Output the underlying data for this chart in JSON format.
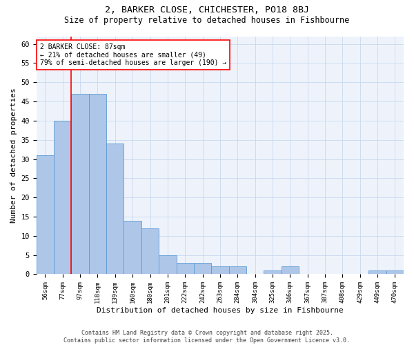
{
  "title1": "2, BARKER CLOSE, CHICHESTER, PO18 8BJ",
  "title2": "Size of property relative to detached houses in Fishbourne",
  "xlabel": "Distribution of detached houses by size in Fishbourne",
  "ylabel": "Number of detached properties",
  "bar_labels": [
    "56sqm",
    "77sqm",
    "97sqm",
    "118sqm",
    "139sqm",
    "160sqm",
    "180sqm",
    "201sqm",
    "222sqm",
    "242sqm",
    "263sqm",
    "284sqm",
    "304sqm",
    "325sqm",
    "346sqm",
    "367sqm",
    "387sqm",
    "408sqm",
    "429sqm",
    "449sqm",
    "470sqm"
  ],
  "bar_values": [
    31,
    40,
    47,
    47,
    34,
    14,
    12,
    5,
    3,
    3,
    2,
    2,
    0,
    1,
    2,
    0,
    0,
    0,
    0,
    1,
    1
  ],
  "bar_color": "#aec6e8",
  "bar_edge_color": "#5b9bd5",
  "bg_color": "#eef3fb",
  "grid_color": "#c8d8ee",
  "annotation_text": "2 BARKER CLOSE: 87sqm\n← 21% of detached houses are smaller (49)\n79% of semi-detached houses are larger (190) →",
  "footer_text": "Contains HM Land Registry data © Crown copyright and database right 2025.\nContains public sector information licensed under the Open Government Licence v3.0.",
  "ylim": [
    0,
    62
  ],
  "yticks": [
    0,
    5,
    10,
    15,
    20,
    25,
    30,
    35,
    40,
    45,
    50,
    55,
    60
  ],
  "red_line_x": 1.5
}
